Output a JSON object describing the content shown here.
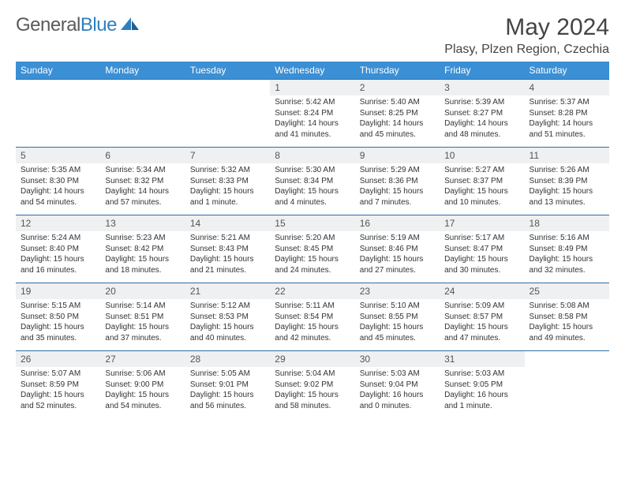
{
  "logo": {
    "part1": "General",
    "part2": "Blue"
  },
  "title": "May 2024",
  "location": "Plasy, Plzen Region, Czechia",
  "weekdays": [
    "Sunday",
    "Monday",
    "Tuesday",
    "Wednesday",
    "Thursday",
    "Friday",
    "Saturday"
  ],
  "colors": {
    "header_bg": "#3b8fd4",
    "row_border": "#2f6fa8",
    "daynum_bg": "#eef0f1",
    "logo_blue": "#2f7fbf"
  },
  "weeks": [
    [
      {
        "n": "",
        "lines": []
      },
      {
        "n": "",
        "lines": []
      },
      {
        "n": "",
        "lines": []
      },
      {
        "n": "1",
        "lines": [
          "Sunrise: 5:42 AM",
          "Sunset: 8:24 PM",
          "Daylight: 14 hours",
          "and 41 minutes."
        ]
      },
      {
        "n": "2",
        "lines": [
          "Sunrise: 5:40 AM",
          "Sunset: 8:25 PM",
          "Daylight: 14 hours",
          "and 45 minutes."
        ]
      },
      {
        "n": "3",
        "lines": [
          "Sunrise: 5:39 AM",
          "Sunset: 8:27 PM",
          "Daylight: 14 hours",
          "and 48 minutes."
        ]
      },
      {
        "n": "4",
        "lines": [
          "Sunrise: 5:37 AM",
          "Sunset: 8:28 PM",
          "Daylight: 14 hours",
          "and 51 minutes."
        ]
      }
    ],
    [
      {
        "n": "5",
        "lines": [
          "Sunrise: 5:35 AM",
          "Sunset: 8:30 PM",
          "Daylight: 14 hours",
          "and 54 minutes."
        ]
      },
      {
        "n": "6",
        "lines": [
          "Sunrise: 5:34 AM",
          "Sunset: 8:32 PM",
          "Daylight: 14 hours",
          "and 57 minutes."
        ]
      },
      {
        "n": "7",
        "lines": [
          "Sunrise: 5:32 AM",
          "Sunset: 8:33 PM",
          "Daylight: 15 hours",
          "and 1 minute."
        ]
      },
      {
        "n": "8",
        "lines": [
          "Sunrise: 5:30 AM",
          "Sunset: 8:34 PM",
          "Daylight: 15 hours",
          "and 4 minutes."
        ]
      },
      {
        "n": "9",
        "lines": [
          "Sunrise: 5:29 AM",
          "Sunset: 8:36 PM",
          "Daylight: 15 hours",
          "and 7 minutes."
        ]
      },
      {
        "n": "10",
        "lines": [
          "Sunrise: 5:27 AM",
          "Sunset: 8:37 PM",
          "Daylight: 15 hours",
          "and 10 minutes."
        ]
      },
      {
        "n": "11",
        "lines": [
          "Sunrise: 5:26 AM",
          "Sunset: 8:39 PM",
          "Daylight: 15 hours",
          "and 13 minutes."
        ]
      }
    ],
    [
      {
        "n": "12",
        "lines": [
          "Sunrise: 5:24 AM",
          "Sunset: 8:40 PM",
          "Daylight: 15 hours",
          "and 16 minutes."
        ]
      },
      {
        "n": "13",
        "lines": [
          "Sunrise: 5:23 AM",
          "Sunset: 8:42 PM",
          "Daylight: 15 hours",
          "and 18 minutes."
        ]
      },
      {
        "n": "14",
        "lines": [
          "Sunrise: 5:21 AM",
          "Sunset: 8:43 PM",
          "Daylight: 15 hours",
          "and 21 minutes."
        ]
      },
      {
        "n": "15",
        "lines": [
          "Sunrise: 5:20 AM",
          "Sunset: 8:45 PM",
          "Daylight: 15 hours",
          "and 24 minutes."
        ]
      },
      {
        "n": "16",
        "lines": [
          "Sunrise: 5:19 AM",
          "Sunset: 8:46 PM",
          "Daylight: 15 hours",
          "and 27 minutes."
        ]
      },
      {
        "n": "17",
        "lines": [
          "Sunrise: 5:17 AM",
          "Sunset: 8:47 PM",
          "Daylight: 15 hours",
          "and 30 minutes."
        ]
      },
      {
        "n": "18",
        "lines": [
          "Sunrise: 5:16 AM",
          "Sunset: 8:49 PM",
          "Daylight: 15 hours",
          "and 32 minutes."
        ]
      }
    ],
    [
      {
        "n": "19",
        "lines": [
          "Sunrise: 5:15 AM",
          "Sunset: 8:50 PM",
          "Daylight: 15 hours",
          "and 35 minutes."
        ]
      },
      {
        "n": "20",
        "lines": [
          "Sunrise: 5:14 AM",
          "Sunset: 8:51 PM",
          "Daylight: 15 hours",
          "and 37 minutes."
        ]
      },
      {
        "n": "21",
        "lines": [
          "Sunrise: 5:12 AM",
          "Sunset: 8:53 PM",
          "Daylight: 15 hours",
          "and 40 minutes."
        ]
      },
      {
        "n": "22",
        "lines": [
          "Sunrise: 5:11 AM",
          "Sunset: 8:54 PM",
          "Daylight: 15 hours",
          "and 42 minutes."
        ]
      },
      {
        "n": "23",
        "lines": [
          "Sunrise: 5:10 AM",
          "Sunset: 8:55 PM",
          "Daylight: 15 hours",
          "and 45 minutes."
        ]
      },
      {
        "n": "24",
        "lines": [
          "Sunrise: 5:09 AM",
          "Sunset: 8:57 PM",
          "Daylight: 15 hours",
          "and 47 minutes."
        ]
      },
      {
        "n": "25",
        "lines": [
          "Sunrise: 5:08 AM",
          "Sunset: 8:58 PM",
          "Daylight: 15 hours",
          "and 49 minutes."
        ]
      }
    ],
    [
      {
        "n": "26",
        "lines": [
          "Sunrise: 5:07 AM",
          "Sunset: 8:59 PM",
          "Daylight: 15 hours",
          "and 52 minutes."
        ]
      },
      {
        "n": "27",
        "lines": [
          "Sunrise: 5:06 AM",
          "Sunset: 9:00 PM",
          "Daylight: 15 hours",
          "and 54 minutes."
        ]
      },
      {
        "n": "28",
        "lines": [
          "Sunrise: 5:05 AM",
          "Sunset: 9:01 PM",
          "Daylight: 15 hours",
          "and 56 minutes."
        ]
      },
      {
        "n": "29",
        "lines": [
          "Sunrise: 5:04 AM",
          "Sunset: 9:02 PM",
          "Daylight: 15 hours",
          "and 58 minutes."
        ]
      },
      {
        "n": "30",
        "lines": [
          "Sunrise: 5:03 AM",
          "Sunset: 9:04 PM",
          "Daylight: 16 hours",
          "and 0 minutes."
        ]
      },
      {
        "n": "31",
        "lines": [
          "Sunrise: 5:03 AM",
          "Sunset: 9:05 PM",
          "Daylight: 16 hours",
          "and 1 minute."
        ]
      },
      {
        "n": "",
        "lines": []
      }
    ]
  ]
}
